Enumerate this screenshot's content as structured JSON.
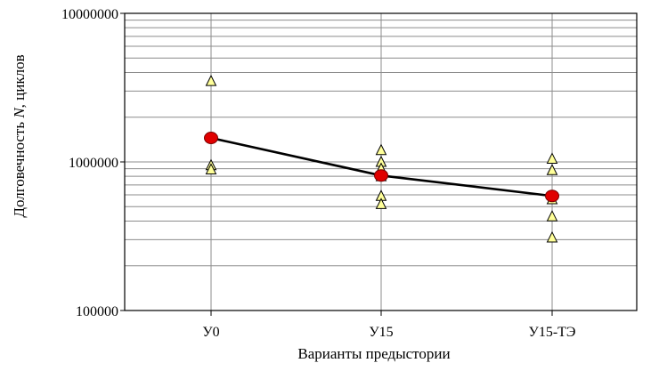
{
  "chart_data": {
    "type": "scatter",
    "title": "",
    "xlabel": "Варианты предыстории",
    "ylabel": "Долговечность N, циклов",
    "ylabel_parts": [
      "Долговечность ",
      "N",
      ", циклов"
    ],
    "yscale": "log",
    "ylim": [
      100000,
      10000000
    ],
    "categories": [
      "У0",
      "У15",
      "У15-ТЭ"
    ],
    "y_tick_labels": [
      {
        "value": 100000,
        "label": "100000"
      },
      {
        "value": 1000000,
        "label": "1000000"
      },
      {
        "value": 10000000,
        "label": "10000000"
      }
    ],
    "grid": true,
    "series": [
      {
        "marker": "triangle",
        "color": "#ffff99",
        "points": [
          {
            "category": "У0",
            "y": 3500000
          },
          {
            "category": "У0",
            "y": 950000
          },
          {
            "category": "У0",
            "y": 890000
          },
          {
            "category": "У15",
            "y": 1200000
          },
          {
            "category": "У15",
            "y": 1000000
          },
          {
            "category": "У15",
            "y": 900000
          },
          {
            "category": "У15",
            "y": 800000
          },
          {
            "category": "У15",
            "y": 590000
          },
          {
            "category": "У15",
            "y": 520000
          },
          {
            "category": "У15-ТЭ",
            "y": 1050000
          },
          {
            "category": "У15-ТЭ",
            "y": 880000
          },
          {
            "category": "У15-ТЭ",
            "y": 560000
          },
          {
            "category": "У15-ТЭ",
            "y": 430000
          },
          {
            "category": "У15-ТЭ",
            "y": 310000
          }
        ]
      },
      {
        "marker": "circle",
        "color": "#e00000",
        "line": true,
        "points": [
          {
            "category": "У0",
            "y": 1450000
          },
          {
            "category": "У15",
            "y": 810000
          },
          {
            "category": "У15-ТЭ",
            "y": 590000
          }
        ]
      }
    ]
  }
}
